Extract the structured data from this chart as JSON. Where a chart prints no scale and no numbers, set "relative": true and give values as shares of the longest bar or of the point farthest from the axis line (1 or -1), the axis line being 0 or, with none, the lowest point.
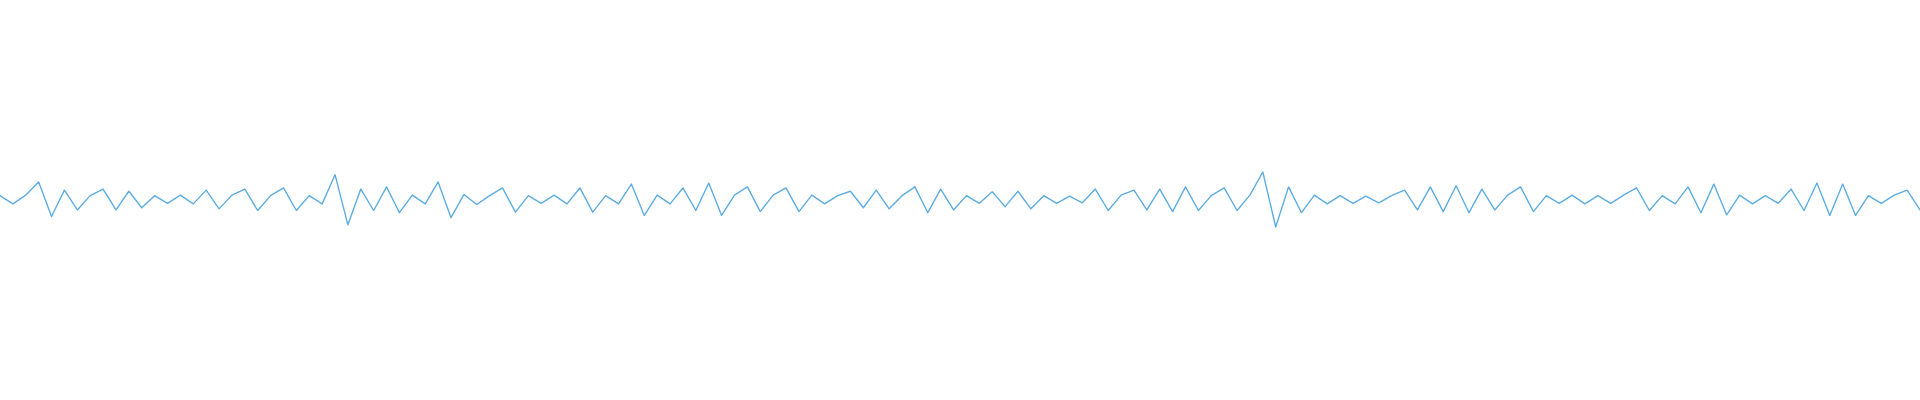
{
  "chart_data": {
    "type": "line",
    "relative": true,
    "categories": [
      null,
      null,
      null,
      null,
      null,
      null,
      null,
      null,
      null,
      null,
      null,
      null,
      null,
      null,
      null,
      null,
      null,
      null,
      null,
      null,
      null,
      null,
      null,
      null,
      null,
      null,
      null,
      null,
      null,
      null,
      null,
      null,
      null,
      null,
      null,
      null,
      null,
      null,
      null,
      null,
      null,
      null,
      null,
      null,
      null,
      null,
      null,
      null,
      null,
      null,
      null,
      null,
      null,
      null,
      null,
      null,
      null,
      null,
      null,
      null,
      null,
      null,
      null,
      null,
      null,
      null,
      null,
      null,
      null,
      null,
      null,
      null,
      null,
      null,
      null,
      null,
      null,
      null,
      null,
      null,
      null,
      null,
      null,
      null,
      null,
      null,
      null,
      null,
      null,
      null,
      null,
      null,
      null,
      null,
      null,
      null,
      null,
      null,
      null,
      null,
      null,
      null,
      null,
      null,
      null,
      null,
      null,
      null,
      null,
      null,
      null,
      null,
      null,
      null,
      null,
      null,
      null,
      null,
      null,
      null,
      null,
      null,
      null,
      null,
      null,
      null,
      null,
      null,
      null,
      null,
      null,
      null,
      null,
      null,
      null,
      null,
      null,
      null,
      null,
      null,
      null,
      null,
      null,
      null,
      null,
      null,
      null,
      null,
      null,
      null
    ],
    "series": [
      {
        "color": "#5dade2",
        "values": [
          0.57,
          0.42,
          0.58,
          0.82,
          0.19,
          0.67,
          0.31,
          0.57,
          0.69,
          0.31,
          0.65,
          0.35,
          0.57,
          0.43,
          0.58,
          0.42,
          0.67,
          0.33,
          0.58,
          0.69,
          0.3,
          0.57,
          0.71,
          0.3,
          0.57,
          0.42,
          0.95,
          0.04,
          0.69,
          0.3,
          0.73,
          0.26,
          0.58,
          0.42,
          0.82,
          0.17,
          0.59,
          0.41,
          0.57,
          0.71,
          0.27,
          0.57,
          0.43,
          0.58,
          0.42,
          0.71,
          0.27,
          0.57,
          0.42,
          0.78,
          0.21,
          0.58,
          0.42,
          0.71,
          0.3,
          0.8,
          0.21,
          0.58,
          0.73,
          0.28,
          0.58,
          0.71,
          0.28,
          0.58,
          0.42,
          0.57,
          0.65,
          0.35,
          0.67,
          0.33,
          0.57,
          0.73,
          0.26,
          0.69,
          0.31,
          0.57,
          0.43,
          0.64,
          0.37,
          0.65,
          0.33,
          0.57,
          0.43,
          0.56,
          0.44,
          0.69,
          0.3,
          0.58,
          0.67,
          0.31,
          0.69,
          0.28,
          0.73,
          0.3,
          0.57,
          0.71,
          0.3,
          0.58,
          1.0,
          0.0,
          0.73,
          0.26,
          0.58,
          0.42,
          0.57,
          0.43,
          0.56,
          0.44,
          0.57,
          0.67,
          0.31,
          0.73,
          0.28,
          0.75,
          0.26,
          0.69,
          0.31,
          0.58,
          0.73,
          0.28,
          0.57,
          0.43,
          0.58,
          0.42,
          0.57,
          0.43,
          0.58,
          0.71,
          0.3,
          0.57,
          0.42,
          0.73,
          0.26,
          0.78,
          0.22,
          0.58,
          0.42,
          0.57,
          0.43,
          0.69,
          0.3,
          0.8,
          0.21,
          0.78,
          0.21,
          0.57,
          0.43,
          0.58,
          0.67,
          0.31
        ]
      }
    ]
  }
}
